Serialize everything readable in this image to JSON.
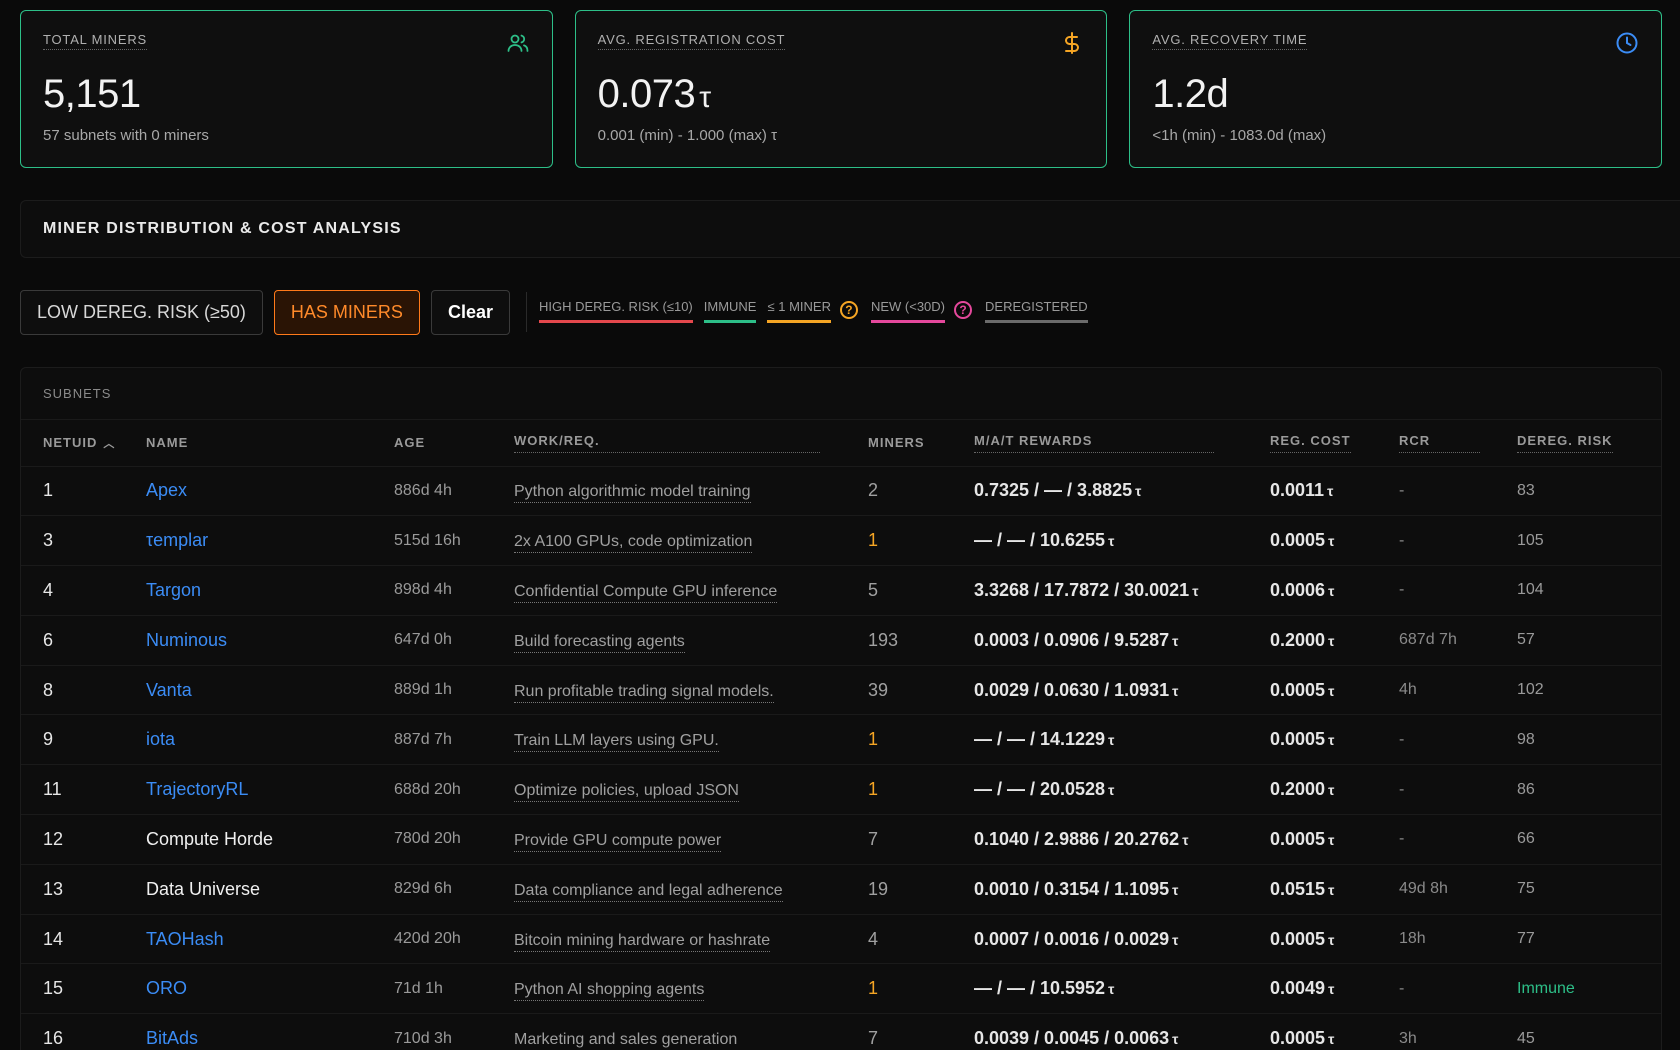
{
  "cards": [
    {
      "title": "TOTAL MINERS",
      "value": "5,151",
      "unit": "",
      "sub": "57 subnets with 0 miners",
      "icon": "users-icon",
      "icon_color": "#2dbf88"
    },
    {
      "title": "AVG. REGISTRATION COST",
      "value": "0.073",
      "unit": "τ",
      "sub": "0.001 (min) - 1.000 (max) τ",
      "icon": "dollar-icon",
      "icon_color": "#f5a524"
    },
    {
      "title": "AVG. RECOVERY TIME",
      "value": "1.2d",
      "unit": "",
      "sub": "<1h (min) - 1083.0d (max)",
      "icon": "clock-icon",
      "icon_color": "#3b8cf5"
    }
  ],
  "section": {
    "title": "MINER DISTRIBUTION & COST ANALYSIS"
  },
  "filters": {
    "low_dereg": "LOW DEREG. RISK (≥50)",
    "has_miners": "HAS MINERS",
    "clear": "Clear"
  },
  "legend": [
    {
      "label": "HIGH DEREG. RISK (≤10)",
      "color": "#e5484d",
      "help": false
    },
    {
      "label": "IMMUNE",
      "color": "#2dbf88",
      "help": false
    },
    {
      "label": "≤ 1 MINER",
      "color": "#f5a524",
      "help": true
    },
    {
      "label": "NEW (<30D)",
      "color": "#e5489c",
      "help": true
    },
    {
      "label": "DEREGISTERED",
      "color": "#6b6b6b",
      "help": false
    }
  ],
  "table": {
    "label": "SUBNETS",
    "headers": {
      "netuid": "NETUID",
      "name": "NAME",
      "age": "AGE",
      "work": "WORK/REQ.",
      "miners": "MINERS",
      "rewards": "M/A/T REWARDS",
      "reg_cost": "REG. COST",
      "rcr": "RCR",
      "dereg": "DEREG. RISK"
    },
    "rows": [
      {
        "netuid": "1",
        "name": "Apex",
        "link": true,
        "age": "886d 4h",
        "work": "Python algorithmic model training",
        "miners": "2",
        "warn": false,
        "rewards": "0.7325 / — / 3.8825",
        "reg": "0.0011",
        "rcr": "-",
        "dereg": "83",
        "immune": false
      },
      {
        "netuid": "3",
        "name": "τemplar",
        "link": true,
        "age": "515d 16h",
        "work": "2x A100 GPUs, code optimization",
        "miners": "1",
        "warn": true,
        "rewards": "— / — / 10.6255",
        "reg": "0.0005",
        "rcr": "-",
        "dereg": "105",
        "immune": false
      },
      {
        "netuid": "4",
        "name": "Targon",
        "link": true,
        "age": "898d 4h",
        "work": "Confidential Compute GPU inference",
        "miners": "5",
        "warn": false,
        "rewards": "3.3268 / 17.7872 / 30.0021",
        "reg": "0.0006",
        "rcr": "-",
        "dereg": "104",
        "immune": false
      },
      {
        "netuid": "6",
        "name": "Numinous",
        "link": true,
        "age": "647d 0h",
        "work": "Build forecasting agents",
        "miners": "193",
        "warn": false,
        "rewards": "0.0003 / 0.0906 / 9.5287",
        "reg": "0.2000",
        "rcr": "687d 7h",
        "dereg": "57",
        "immune": false
      },
      {
        "netuid": "8",
        "name": "Vanta",
        "link": true,
        "age": "889d 1h",
        "work": "Run profitable trading signal models.",
        "miners": "39",
        "warn": false,
        "rewards": "0.0029 / 0.0630 / 1.0931",
        "reg": "0.0005",
        "rcr": "4h",
        "dereg": "102",
        "immune": false
      },
      {
        "netuid": "9",
        "name": "iota",
        "link": true,
        "age": "887d 7h",
        "work": "Train LLM layers using GPU.",
        "miners": "1",
        "warn": true,
        "rewards": "— / — / 14.1229",
        "reg": "0.0005",
        "rcr": "-",
        "dereg": "98",
        "immune": false
      },
      {
        "netuid": "11",
        "name": "TrajectoryRL",
        "link": true,
        "age": "688d 20h",
        "work": "Optimize policies, upload JSON",
        "miners": "1",
        "warn": true,
        "rewards": "— / — / 20.0528",
        "reg": "0.2000",
        "rcr": "-",
        "dereg": "86",
        "immune": false
      },
      {
        "netuid": "12",
        "name": "Compute Horde",
        "link": false,
        "age": "780d 20h",
        "work": "Provide GPU compute power",
        "miners": "7",
        "warn": false,
        "rewards": "0.1040 / 2.9886 / 20.2762",
        "reg": "0.0005",
        "rcr": "-",
        "dereg": "66",
        "immune": false
      },
      {
        "netuid": "13",
        "name": "Data Universe",
        "link": false,
        "age": "829d 6h",
        "work": "Data compliance and legal adherence",
        "miners": "19",
        "warn": false,
        "rewards": "0.0010 / 0.3154 / 1.1095",
        "reg": "0.0515",
        "rcr": "49d 8h",
        "dereg": "75",
        "immune": false
      },
      {
        "netuid": "14",
        "name": "TAOHash",
        "link": true,
        "age": "420d 20h",
        "work": "Bitcoin mining hardware or hashrate",
        "miners": "4",
        "warn": false,
        "rewards": "0.0007 / 0.0016 / 0.0029",
        "reg": "0.0005",
        "rcr": "18h",
        "dereg": "77",
        "immune": false
      },
      {
        "netuid": "15",
        "name": "ORO",
        "link": true,
        "age": "71d 1h",
        "work": "Python AI shopping agents",
        "miners": "1",
        "warn": true,
        "rewards": "— / — / 10.5952",
        "reg": "0.0049",
        "rcr": "-",
        "dereg": "Immune",
        "immune": true
      },
      {
        "netuid": "16",
        "name": "BitAds",
        "link": true,
        "age": "710d 3h",
        "work": "Marketing and sales generation",
        "miners": "7",
        "warn": false,
        "rewards": "0.0039 / 0.0045 / 0.0063",
        "reg": "0.0005",
        "rcr": "3h",
        "dereg": "45",
        "immune": false
      }
    ]
  },
  "tao_symbol": "τ"
}
